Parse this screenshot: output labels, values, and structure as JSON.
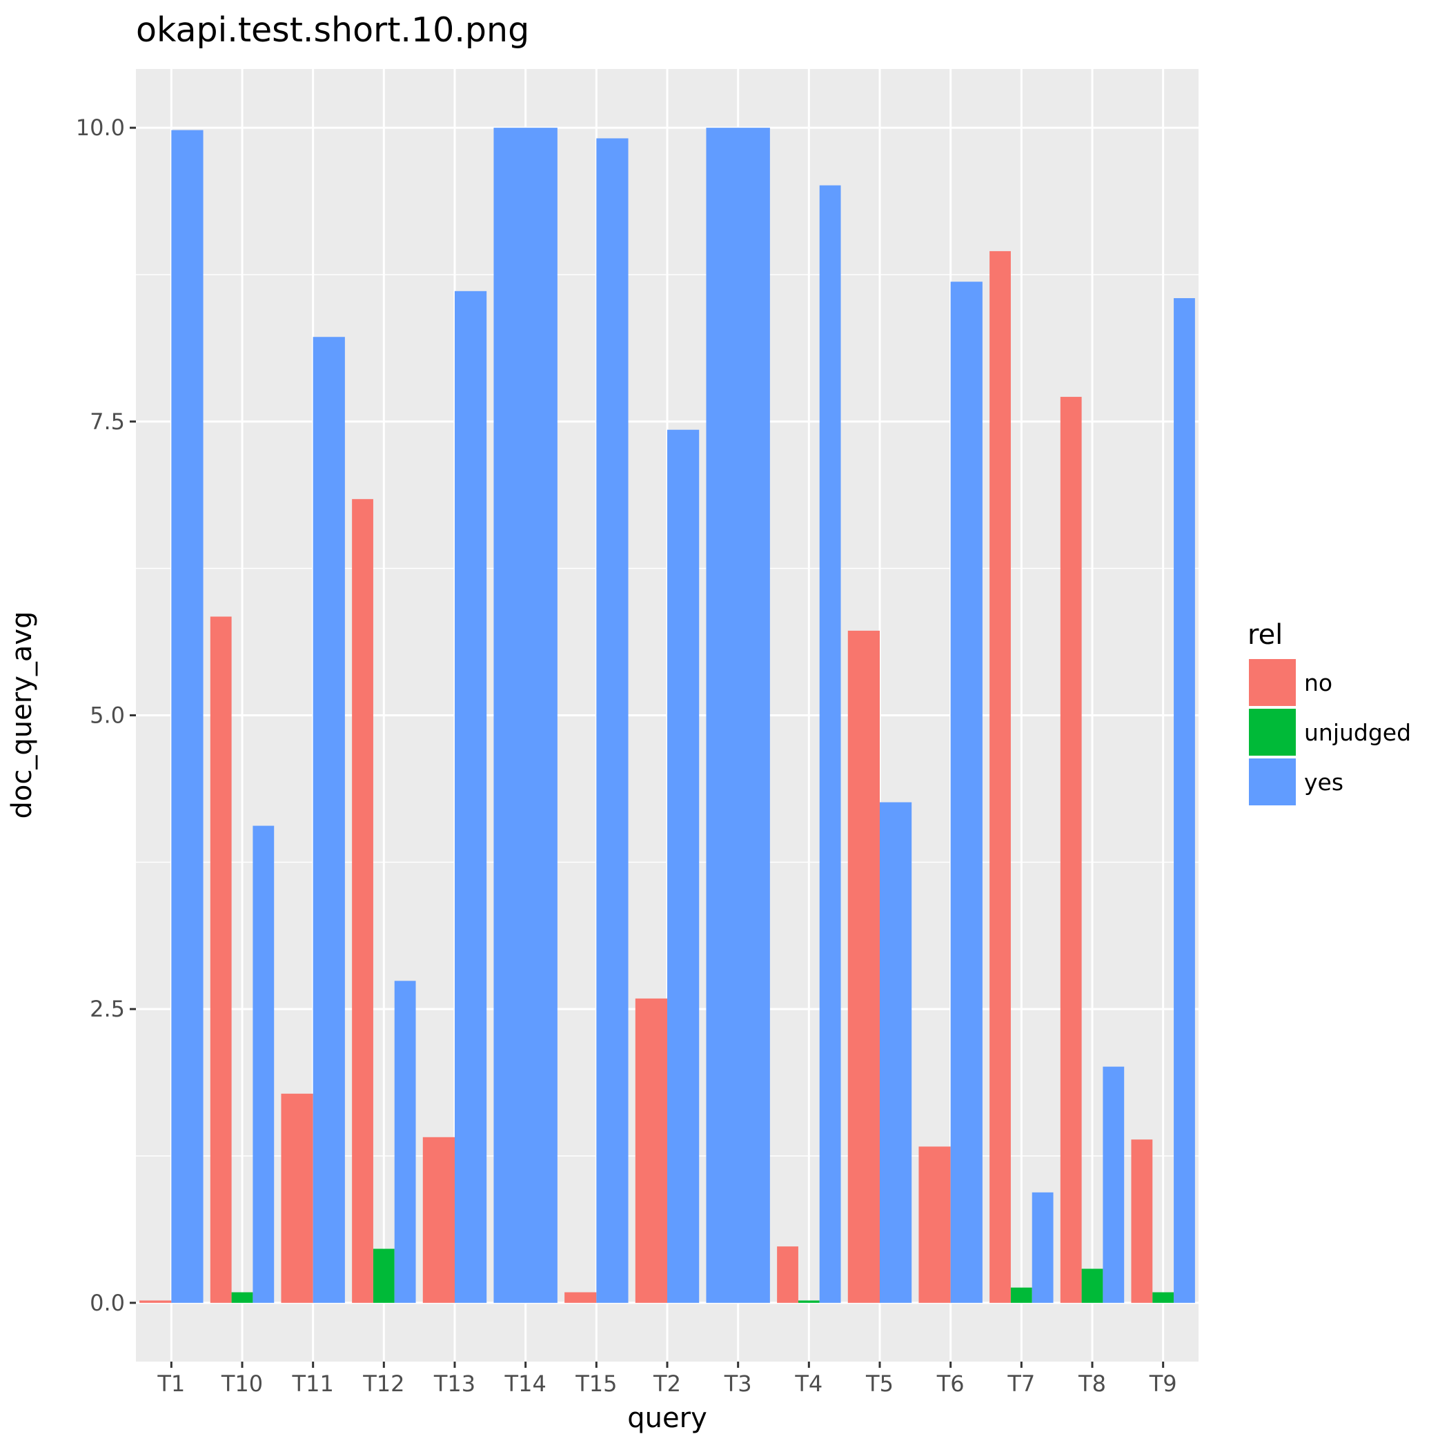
{
  "chart_data": {
    "type": "bar",
    "title": "okapi.test.short.10.png",
    "xlabel": "query",
    "ylabel": "doc_query_avg",
    "categories": [
      "T1",
      "T10",
      "T11",
      "T12",
      "T13",
      "T14",
      "T15",
      "T2",
      "T3",
      "T4",
      "T5",
      "T6",
      "T7",
      "T8",
      "T9"
    ],
    "ylim": [
      -0.5,
      10.5
    ],
    "yticks": [
      0.0,
      2.5,
      5.0,
      7.5,
      10.0
    ],
    "ytick_labels": [
      "0.0",
      "2.5",
      "5.0",
      "7.5",
      "10.0"
    ],
    "grid": true,
    "legend": {
      "title": "rel",
      "position": "right"
    },
    "series": [
      {
        "name": "no",
        "color": "#F8766D",
        "values": [
          0.02,
          5.84,
          1.78,
          6.84,
          1.41,
          null,
          0.09,
          2.59,
          null,
          0.48,
          5.72,
          1.33,
          8.95,
          7.71,
          1.39
        ]
      },
      {
        "name": "unjudged",
        "color": "#00BA38",
        "values": [
          null,
          0.09,
          null,
          0.46,
          null,
          null,
          null,
          null,
          null,
          0.02,
          null,
          null,
          0.13,
          0.29,
          0.09
        ]
      },
      {
        "name": "yes",
        "color": "#619CFF",
        "values": [
          9.98,
          4.06,
          8.22,
          2.74,
          8.61,
          10.0,
          9.91,
          7.43,
          10.0,
          9.51,
          4.26,
          8.69,
          0.94,
          2.01,
          8.55
        ]
      }
    ]
  }
}
